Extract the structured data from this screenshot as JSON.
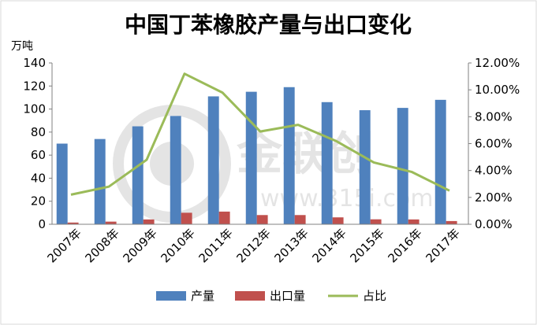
{
  "chart_data": {
    "type": "bar",
    "title": "中国丁苯橡胶产量与出口变化",
    "ylabel": "万吨",
    "categories": [
      "2007年",
      "2008年",
      "2009年",
      "2010年",
      "2011年",
      "2012年",
      "2013年",
      "2014年",
      "2015年",
      "2016年",
      "2017年"
    ],
    "series": [
      {
        "name": "产量",
        "kind": "bar",
        "axis": "left",
        "color": "#4f81bd",
        "values": [
          70,
          74,
          85,
          94,
          111,
          115,
          119,
          106,
          99,
          101,
          108
        ]
      },
      {
        "name": "出口量",
        "kind": "bar",
        "axis": "left",
        "color": "#c0504d",
        "values": [
          1.5,
          2.3,
          4.2,
          10,
          11,
          8,
          8,
          6,
          4.3,
          4.2,
          2.8
        ]
      },
      {
        "name": "占比",
        "kind": "line",
        "axis": "right",
        "color": "#9bbb59",
        "values": [
          2.2,
          2.8,
          4.8,
          11.2,
          9.8,
          6.9,
          7.4,
          6.2,
          4.6,
          3.9,
          2.5
        ]
      }
    ],
    "ylim": [
      0,
      140
    ],
    "yticks": [
      "0",
      "20",
      "40",
      "60",
      "80",
      "100",
      "120",
      "140"
    ],
    "y2lim": [
      0,
      12
    ],
    "y2ticks": [
      "0.00%",
      "2.00%",
      "4.00%",
      "6.00%",
      "8.00%",
      "10.00%",
      "12.00%"
    ],
    "grid": false,
    "legend_position": "bottom"
  },
  "watermark": {
    "brand": "金联创",
    "url": "www.315i.com"
  }
}
